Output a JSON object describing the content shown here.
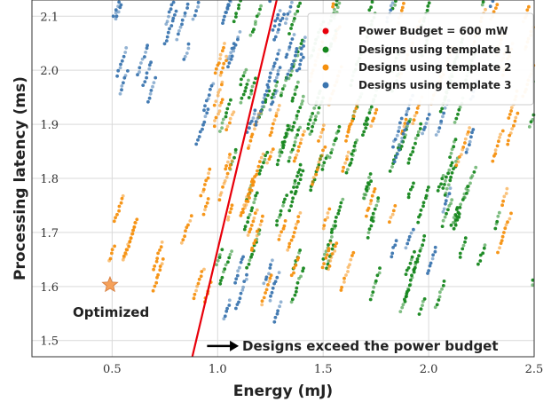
{
  "chart_data": {
    "type": "scatter",
    "xlabel": "Energy (mJ)",
    "ylabel": "Processing latency (ms)",
    "xlim": [
      0.12,
      2.5
    ],
    "ylim": [
      1.47,
      2.13
    ],
    "xticks": [
      0.5,
      1.0,
      1.5,
      2.0,
      2.5
    ],
    "xtick_labels": [
      "0.5",
      "1.0",
      "1.5",
      "2.0",
      "2.5"
    ],
    "yticks": [
      1.5,
      1.6,
      1.7,
      1.8,
      1.9,
      2.0,
      2.1
    ],
    "ytick_labels": [
      "1.5",
      "1.6",
      "1.7",
      "1.8",
      "1.9",
      "2.0",
      "2.1"
    ],
    "grid": true,
    "legend_position": "top-right",
    "power_budget_line": {
      "label": "Power Budget = 600 mW",
      "color": "#e8000b",
      "points": [
        [
          0.88,
          1.47
        ],
        [
          1.28,
          2.13
        ]
      ]
    },
    "series": [
      {
        "name": "Designs using template 1",
        "color": "#15861c",
        "clusters": [
          {
            "x": [
              0.95,
              1.45
            ],
            "y": [
              1.53,
              2.13
            ],
            "n": 220
          },
          {
            "x": [
              1.3,
              2.2
            ],
            "y": [
              1.55,
              2.13
            ],
            "n": 420
          },
          {
            "x": [
              1.6,
              2.5
            ],
            "y": [
              1.55,
              2.13
            ],
            "n": 180
          }
        ]
      },
      {
        "name": "Designs using template 2",
        "color": "#f5900e",
        "clusters": [
          {
            "x": [
              0.45,
              0.56
            ],
            "y": [
              1.58,
              1.83
            ],
            "n": 30
          },
          {
            "x": [
              0.55,
              0.95
            ],
            "y": [
              1.57,
              1.8
            ],
            "n": 60
          },
          {
            "x": [
              0.95,
              1.6
            ],
            "y": [
              1.55,
              2.0
            ],
            "n": 260
          },
          {
            "x": [
              1.5,
              2.5
            ],
            "y": [
              1.6,
              2.13
            ],
            "n": 260
          }
        ]
      },
      {
        "name": "Designs using template 3",
        "color": "#3b75af",
        "clusters": [
          {
            "x": [
              0.48,
              0.68
            ],
            "y": [
              1.86,
              2.13
            ],
            "n": 60
          },
          {
            "x": [
              0.72,
              0.95
            ],
            "y": [
              1.84,
              2.13
            ],
            "n": 60
          },
          {
            "x": [
              1.0,
              1.45
            ],
            "y": [
              1.88,
              2.13
            ],
            "n": 160
          },
          {
            "x": [
              0.98,
              1.3
            ],
            "y": [
              1.53,
              1.62
            ],
            "n": 50
          },
          {
            "x": [
              1.8,
              2.4
            ],
            "y": [
              1.58,
              2.13
            ],
            "n": 120
          }
        ]
      }
    ],
    "optimized_point": {
      "x": 0.49,
      "y": 1.603,
      "label": "Optimized",
      "color": "#f5a15a"
    },
    "annotation": {
      "text": "Designs exceed the power budget",
      "arrow_from": [
        0.95,
        1.49
      ],
      "arrow_to": [
        1.1,
        1.49
      ]
    }
  }
}
